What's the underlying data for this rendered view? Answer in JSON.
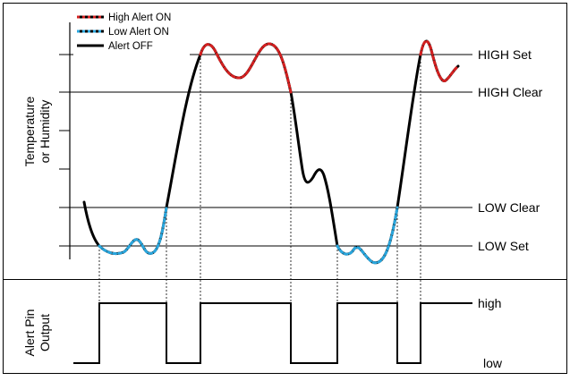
{
  "legend": {
    "high_alert_on": "High Alert ON",
    "low_alert_on": "Low Alert ON",
    "alert_off": "Alert OFF"
  },
  "top_panel": {
    "ylabel_line1": "Temperature",
    "ylabel_line2": "or Humidity",
    "thresholds": {
      "high_set": "HIGH Set",
      "high_clear": "HIGH Clear",
      "low_clear": "LOW Clear",
      "low_set": "LOW Set"
    }
  },
  "bottom_panel": {
    "ylabel_line1": "Alert Pin",
    "ylabel_line2": "Output",
    "level_high": "high",
    "level_low": "low"
  },
  "colors": {
    "high_alert": "#d42020",
    "low_alert": "#2aa6dd",
    "alert_off": "#000000",
    "line": "#000000"
  }
}
